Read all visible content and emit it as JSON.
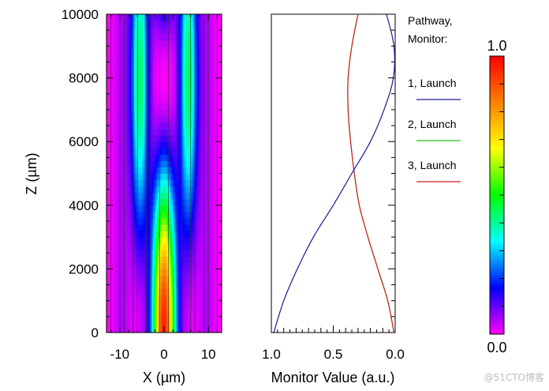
{
  "chart_data": [
    {
      "type": "heatmap",
      "xlabel": "X (µm)",
      "ylabel": "Z (µm)",
      "xlim": [
        -13,
        13
      ],
      "ylim": [
        0,
        10000
      ],
      "x_ticks": [
        -10,
        0,
        10
      ],
      "y_ticks": [
        0,
        2000,
        4000,
        6000,
        8000,
        10000
      ],
      "waveguide_lines_x": [
        -12,
        -10,
        -9,
        -7,
        -6,
        -4,
        -3,
        -1,
        1,
        3,
        4,
        6,
        7,
        9,
        10,
        12
      ],
      "field": {
        "description_values": "normalized intensity 0-1",
        "center_peak_z": 0,
        "side_peak_z": 8000,
        "side_positions_x": [
          -5.5,
          5.5
        ]
      }
    },
    {
      "type": "line",
      "xlabel": "Monitor Value (a.u.)",
      "xlim": [
        1.0,
        0.0
      ],
      "ylim": [
        0,
        10000
      ],
      "x_ticks": [
        "1.0",
        "0.5",
        "0.0"
      ],
      "legend_title": [
        "Pathway,",
        "Monitor:"
      ],
      "series": [
        {
          "name": "1, Launch",
          "color": "#1a1a9c",
          "z": [
            0,
            1000,
            2000,
            3000,
            4000,
            5000,
            6000,
            7000,
            8000,
            9000,
            10000
          ],
          "values": [
            0.98,
            0.9,
            0.79,
            0.66,
            0.5,
            0.35,
            0.2,
            0.09,
            0.015,
            0.01,
            0.07
          ]
        },
        {
          "name": "2, Launch",
          "color": "#22bb22",
          "z": [
            0,
            1000,
            2000,
            3000,
            4000,
            5000,
            6000,
            7000,
            8000,
            9000,
            10000
          ],
          "values": [
            0.01,
            0.06,
            0.14,
            0.22,
            0.29,
            0.33,
            0.36,
            0.38,
            0.38,
            0.35,
            0.3
          ]
        },
        {
          "name": "3, Launch",
          "color": "#cc2222",
          "z": [
            0,
            1000,
            2000,
            3000,
            4000,
            5000,
            6000,
            7000,
            8000,
            9000,
            10000
          ],
          "values": [
            0.01,
            0.06,
            0.14,
            0.22,
            0.29,
            0.33,
            0.36,
            0.38,
            0.38,
            0.35,
            0.3
          ]
        }
      ]
    }
  ],
  "colorbar": {
    "max_label": "1.0",
    "min_label": "0.0",
    "stops": [
      "#ff00ff",
      "#0000ff",
      "#00ffff",
      "#00ff00",
      "#ffff00",
      "#ff8000",
      "#ff0000"
    ]
  },
  "watermark": "@51CTO博客"
}
